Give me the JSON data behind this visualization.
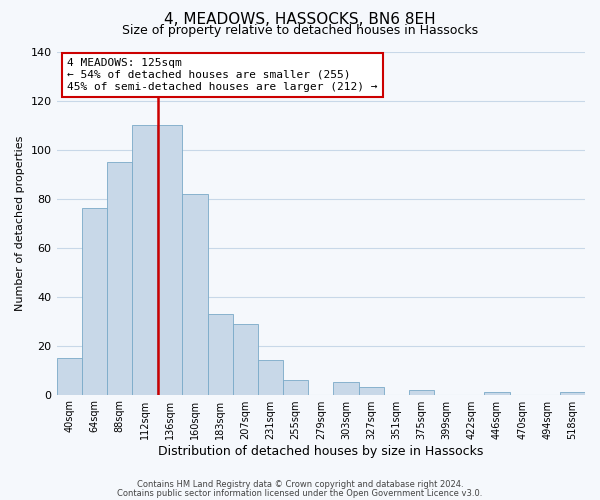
{
  "title": "4, MEADOWS, HASSOCKS, BN6 8EH",
  "subtitle": "Size of property relative to detached houses in Hassocks",
  "xlabel": "Distribution of detached houses by size in Hassocks",
  "ylabel": "Number of detached properties",
  "bin_labels": [
    "40sqm",
    "64sqm",
    "88sqm",
    "112sqm",
    "136sqm",
    "160sqm",
    "183sqm",
    "207sqm",
    "231sqm",
    "255sqm",
    "279sqm",
    "303sqm",
    "327sqm",
    "351sqm",
    "375sqm",
    "399sqm",
    "422sqm",
    "446sqm",
    "470sqm",
    "494sqm",
    "518sqm"
  ],
  "bar_heights": [
    15,
    76,
    95,
    110,
    110,
    82,
    33,
    29,
    14,
    6,
    0,
    5,
    3,
    0,
    2,
    0,
    0,
    1,
    0,
    0,
    1
  ],
  "bar_color": "#c8d8e8",
  "bar_edge_color": "#7aaac8",
  "ylim": [
    0,
    140
  ],
  "yticks": [
    0,
    20,
    40,
    60,
    80,
    100,
    120,
    140
  ],
  "annotation_title": "4 MEADOWS: 125sqm",
  "annotation_line1": "← 54% of detached houses are smaller (255)",
  "annotation_line2": "45% of semi-detached houses are larger (212) →",
  "annotation_box_color": "#ffffff",
  "annotation_border_color": "#cc0000",
  "red_line_color": "#cc0000",
  "footer1": "Contains HM Land Registry data © Crown copyright and database right 2024.",
  "footer2": "Contains public sector information licensed under the Open Government Licence v3.0.",
  "background_color": "#f5f8fc",
  "grid_color": "#c8d8e8",
  "title_fontsize": 11,
  "subtitle_fontsize": 9,
  "ylabel_fontsize": 8,
  "xlabel_fontsize": 9
}
